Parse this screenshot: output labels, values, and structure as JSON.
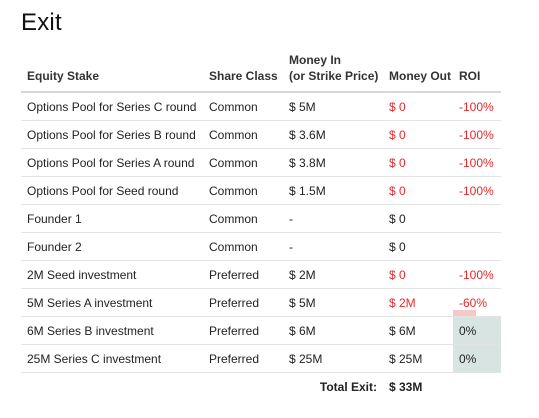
{
  "title": "Exit",
  "columns": {
    "stake": "Equity Stake",
    "share_class": "Share Class",
    "money_in_1": "Money In",
    "money_in_2": "(or Strike Price)",
    "money_out": "Money Out",
    "roi": "ROI"
  },
  "rows": [
    {
      "stake": "Options Pool for Series C round",
      "share_class": "Common",
      "money_in": "$ 5M",
      "money_out": "$ 0",
      "out_red": true,
      "roi": "-100%",
      "roi_red": true,
      "roi_value": -1.0
    },
    {
      "stake": "Options Pool for Series B round",
      "share_class": "Common",
      "money_in": "$ 3.6M",
      "money_out": "$ 0",
      "out_red": true,
      "roi": "-100%",
      "roi_red": true,
      "roi_value": -1.0
    },
    {
      "stake": "Options Pool for Series A round",
      "share_class": "Common",
      "money_in": "$ 3.8M",
      "money_out": "$ 0",
      "out_red": true,
      "roi": "-100%",
      "roi_red": true,
      "roi_value": -1.0
    },
    {
      "stake": "Options Pool for Seed round",
      "share_class": "Common",
      "money_in": "$ 1.5M",
      "money_out": "$ 0",
      "out_red": true,
      "roi": "-100%",
      "roi_red": true,
      "roi_value": -1.0
    },
    {
      "stake": "Founder 1",
      "share_class": "Common",
      "money_in": "-",
      "money_out": "$ 0",
      "out_red": false,
      "roi": "",
      "roi_red": false,
      "roi_value": null
    },
    {
      "stake": "Founder 2",
      "share_class": "Common",
      "money_in": "-",
      "money_out": "$ 0",
      "out_red": false,
      "roi": "",
      "roi_red": false,
      "roi_value": null
    },
    {
      "stake": "2M Seed investment",
      "share_class": "Preferred",
      "money_in": "$ 2M",
      "money_out": "$ 0",
      "out_red": true,
      "roi": "-100%",
      "roi_red": true,
      "roi_value": -1.0
    },
    {
      "stake": "5M Series A investment",
      "share_class": "Preferred",
      "money_in": "$ 5M",
      "money_out": "$ 2M",
      "out_red": true,
      "roi": "-60%",
      "roi_red": true,
      "roi_value": -0.6
    },
    {
      "stake": "6M Series B investment",
      "share_class": "Preferred",
      "money_in": "$ 6M",
      "money_out": "$ 6M",
      "out_red": false,
      "roi": "0%",
      "roi_red": false,
      "roi_value": 0
    },
    {
      "stake": "25M Series C investment",
      "share_class": "Preferred",
      "money_in": "$ 25M",
      "money_out": "$ 25M",
      "out_red": false,
      "roi": "0%",
      "roi_red": false,
      "roi_value": 0
    }
  ],
  "total": {
    "label": "Total Exit:",
    "value": "$ 33M"
  },
  "colors": {
    "negative": "#e32a2a",
    "neg_bar": "#f6c9c9",
    "pos_bar": "#d8e4e2"
  }
}
